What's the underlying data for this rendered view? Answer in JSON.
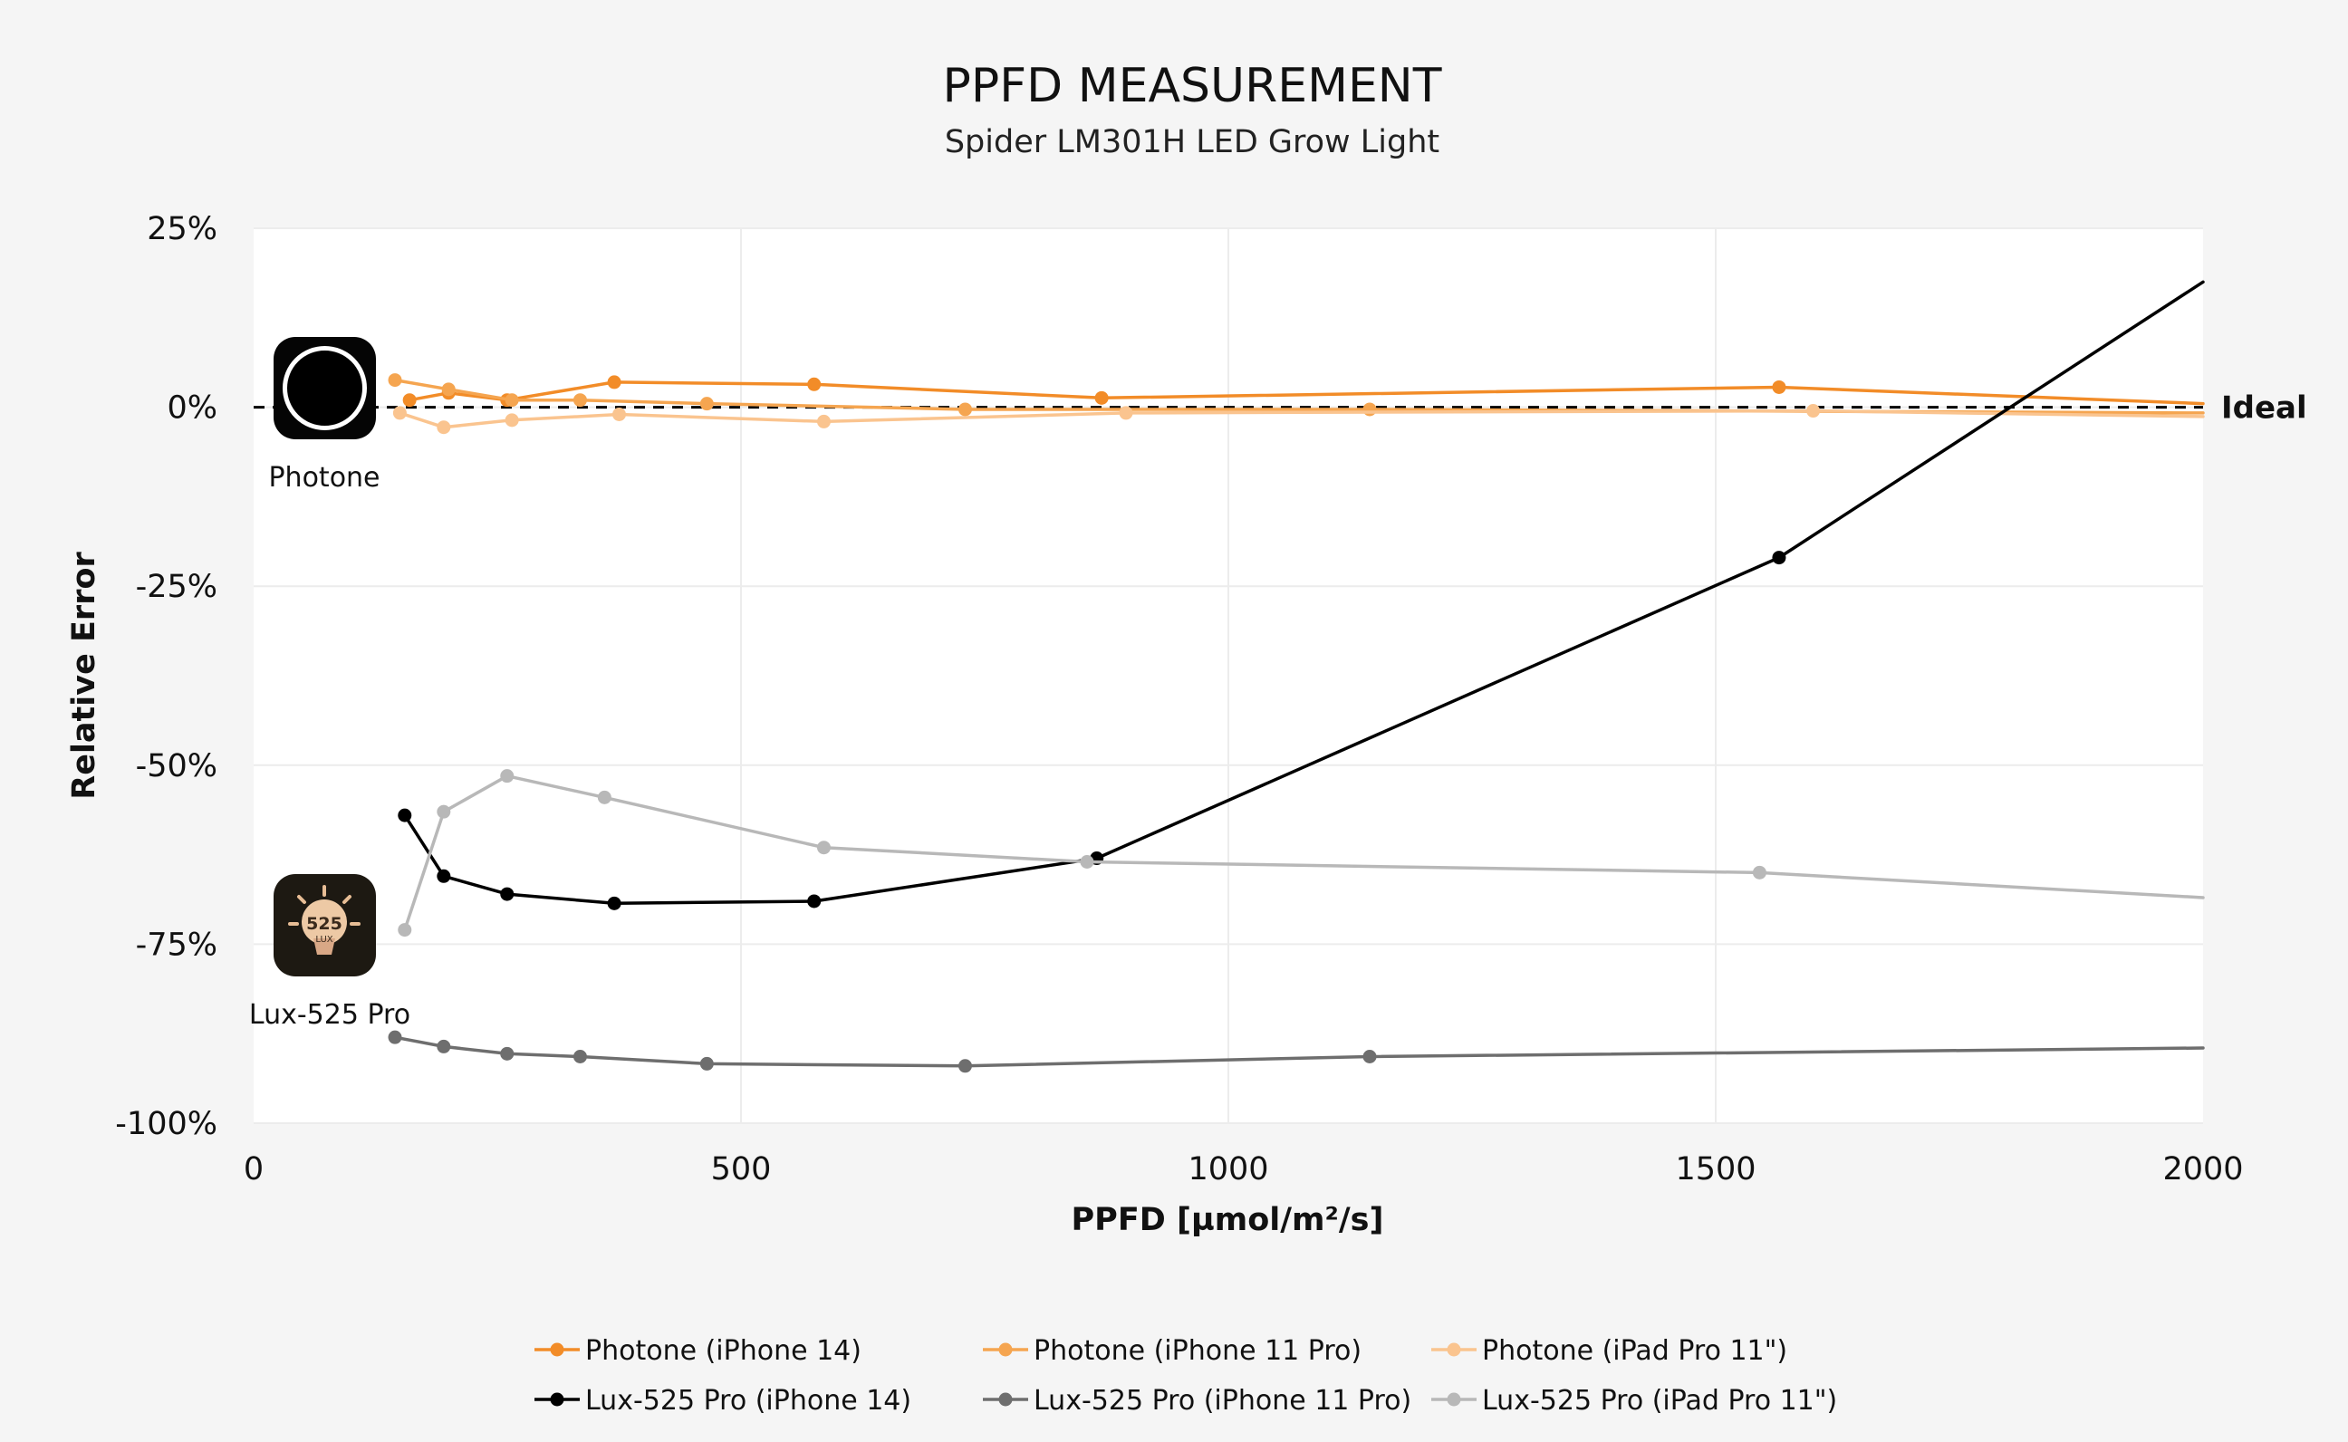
{
  "chart_data": {
    "type": "line",
    "title": "PPFD MEASUREMENT",
    "subtitle": "Spider LM301H LED Grow Light",
    "xlabel": "PPFD [µmol/m²/s]",
    "ylabel": "Relative Error",
    "xlim": [
      0,
      2000
    ],
    "ylim": [
      -100,
      25
    ],
    "xticks": [
      0,
      500,
      1000,
      1500,
      2000
    ],
    "xtick_labels": [
      "0",
      "500",
      "1000",
      "1500",
      "2000"
    ],
    "yticks": [
      25,
      0,
      -25,
      -50,
      -75,
      -100
    ],
    "ytick_labels": [
      "25%",
      "0%",
      "-25%",
      "-50%",
      "-75%",
      "-100%"
    ],
    "grid": true,
    "legend_position": "bottom",
    "ideal": {
      "label": "Ideal",
      "y": 0
    },
    "app_labels": {
      "photone": "Photone",
      "lux": "Lux-525 Pro"
    },
    "lux_icon_text": {
      "number": "525",
      "unit": "LUX"
    },
    "series": [
      {
        "name": "Photone (iPhone 14)",
        "color": "#f28c28",
        "x": [
          160,
          200,
          260,
          370,
          575,
          870,
          1565,
          2000
        ],
        "y": [
          1,
          2,
          1,
          3.5,
          3.2,
          1.3,
          2.8,
          0.5
        ]
      },
      {
        "name": "Photone (iPhone 11 Pro)",
        "color": "#f5a550",
        "x": [
          145,
          200,
          265,
          335,
          465,
          730,
          1145,
          2000
        ],
        "y": [
          3.8,
          2.5,
          1,
          1,
          0.5,
          -0.3,
          -0.3,
          -0.8
        ]
      },
      {
        "name": "Photone (iPad Pro 11\")",
        "color": "#fac48f",
        "x": [
          150,
          195,
          265,
          375,
          585,
          895,
          1600,
          2000
        ],
        "y": [
          -0.8,
          -2.8,
          -1.8,
          -1,
          -2,
          -0.8,
          -0.5,
          -1.3
        ]
      },
      {
        "name": "Lux-525 Pro (iPhone 14)",
        "color": "#000000",
        "x": [
          155,
          195,
          260,
          370,
          575,
          865,
          1565,
          2000
        ],
        "y": [
          -57,
          -65.5,
          -68,
          -69.3,
          -69,
          -63,
          -21,
          17.5
        ]
      },
      {
        "name": "Lux-525 Pro (iPhone 11 Pro)",
        "color": "#6e6e6e",
        "x": [
          145,
          195,
          260,
          335,
          465,
          730,
          1145,
          2000
        ],
        "y": [
          -88,
          -89.3,
          -90.3,
          -90.7,
          -91.7,
          -92,
          -90.7,
          -89.5
        ]
      },
      {
        "name": "Lux-525 Pro (iPad Pro 11\")",
        "color": "#b8b8b8",
        "x": [
          155,
          195,
          260,
          360,
          585,
          855,
          1545,
          2000
        ],
        "y": [
          -73,
          -56.5,
          -51.5,
          -54.5,
          -61.5,
          -63.5,
          -65,
          -68.5
        ]
      }
    ]
  }
}
